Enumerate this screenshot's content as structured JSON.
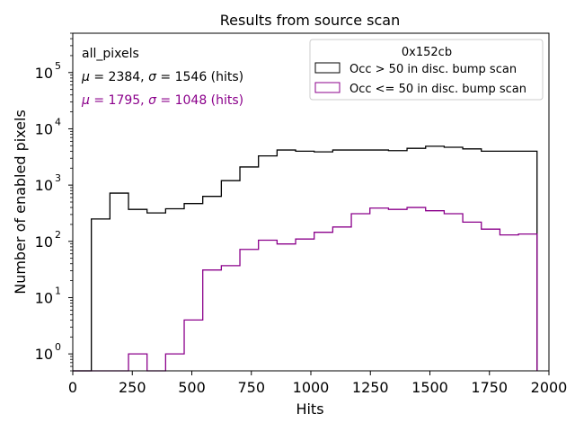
{
  "chart_data": {
    "type": "histogram",
    "title": "Results from source scan",
    "xlabel": "Hits",
    "ylabel": "Number of enabled pixels",
    "xlim": [
      0,
      2000
    ],
    "ylog_lim": [
      0.5,
      500000
    ],
    "xticks": [
      0,
      250,
      500,
      750,
      1000,
      1250,
      1500,
      1750,
      2000
    ],
    "yticks": [
      {
        "value": 1,
        "mantissa": "10",
        "exponent": "0"
      },
      {
        "value": 10,
        "mantissa": "10",
        "exponent": "1"
      },
      {
        "value": 100,
        "mantissa": "10",
        "exponent": "2"
      },
      {
        "value": 1000,
        "mantissa": "10",
        "exponent": "3"
      },
      {
        "value": 10000,
        "mantissa": "10",
        "exponent": "4"
      },
      {
        "value": 100000,
        "mantissa": "10",
        "exponent": "5"
      }
    ],
    "bin_edges": [
      0,
      78,
      156,
      234,
      312,
      390,
      468,
      546,
      624,
      702,
      780,
      858,
      936,
      1014,
      1092,
      1170,
      1248,
      1326,
      1404,
      1482,
      1560,
      1638,
      1716,
      1794,
      1872,
      1950
    ],
    "series": [
      {
        "name": "Occ > 50 in disc. bump scan",
        "color": "#000000",
        "values": [
          0,
          250,
          720,
          370,
          320,
          380,
          470,
          630,
          1200,
          2100,
          3300,
          4200,
          4000,
          3900,
          4200,
          4200,
          4200,
          4100,
          4500,
          4900,
          4700,
          4400,
          4000,
          4000,
          4000
        ]
      },
      {
        "name": "Occ <= 50 in disc. bump scan",
        "color": "#8b008b",
        "values": [
          0,
          0,
          0,
          1,
          0,
          1,
          4,
          31,
          37,
          72,
          105,
          90,
          110,
          145,
          180,
          310,
          390,
          370,
          400,
          350,
          310,
          220,
          165,
          130,
          135
        ]
      }
    ],
    "legend": {
      "title": "0x152cb",
      "position": "top-right"
    },
    "annotations": {
      "label": "all_pixels",
      "stats": [
        {
          "mu_symbol": "μ",
          "mu_text": " = 2384, ",
          "sigma_symbol": "σ",
          "sigma_text": " = 1546 (hits)",
          "color": "#000000"
        },
        {
          "mu_symbol": "μ",
          "mu_text": " = 1795, ",
          "sigma_symbol": "σ",
          "sigma_text": " = 1048 (hits)",
          "color": "#8b008b"
        }
      ]
    }
  }
}
